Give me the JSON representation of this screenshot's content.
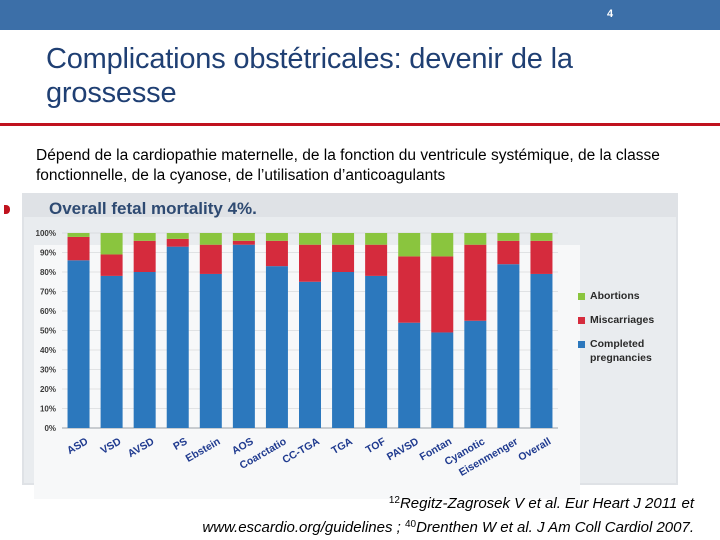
{
  "slide": {
    "number": "4",
    "title": "Complications obstétricales: devenir de la grossesse",
    "body": "Dépend de la cardiopathie maternelle, de la fonction du ventricule systémique, de la classe fonctionnelle, de la cyanose, de l’utilisation d’anticoagulants",
    "reference": {
      "sup1": "12",
      "part1": "Regitz-Zagrosek V et al. Eur Heart J 2011 et",
      "part2": "www.escardio.org/guidelines ; ",
      "sup2": "40",
      "part3": "Drenthen W et al. J Am Coll Cardiol 2007."
    }
  },
  "colors": {
    "completed": "#2c78bd",
    "miscarriages": "#d52b3d",
    "abortions": "#8ac53e",
    "accent": "#c0121e",
    "title": "#1f3f73",
    "topbar": "#3c6fa8"
  },
  "chart_data": {
    "type": "bar",
    "stacked": true,
    "title": "Overall fetal mortality 4%.",
    "categories": [
      "ASD",
      "VSD",
      "AVSD",
      "PS",
      "Ebstein",
      "AOS",
      "Coarctatio",
      "CC-TGA",
      "TGA",
      "TOF",
      "PAVSD",
      "Fontan",
      "Cyanotic",
      "Eisenmenger",
      "Overall"
    ],
    "series": [
      {
        "name": "Completed pregnancies",
        "values": [
          86,
          78,
          80,
          93,
          79,
          94,
          83,
          75,
          80,
          78,
          54,
          49,
          55,
          84,
          79
        ]
      },
      {
        "name": "Miscarriages",
        "values": [
          12,
          11,
          16,
          4,
          15,
          2,
          13,
          19,
          14,
          16,
          34,
          39,
          39,
          12,
          17
        ]
      },
      {
        "name": "Abortions",
        "values": [
          2,
          11,
          4,
          3,
          6,
          4,
          4,
          6,
          6,
          6,
          12,
          12,
          6,
          4,
          4
        ]
      }
    ],
    "y_ticks": [
      "0%",
      "10%",
      "20%",
      "30%",
      "40%",
      "50%",
      "60%",
      "70%",
      "80%",
      "90%",
      "100%"
    ],
    "ylim": [
      0,
      100
    ],
    "legend": [
      {
        "label": "Abortions",
        "series": "Abortions"
      },
      {
        "label": "Miscarriages",
        "series": "Miscarriages"
      },
      {
        "label": "Completed pregnancies",
        "series": "Completed pregnancies"
      }
    ],
    "legend_position": "right"
  }
}
